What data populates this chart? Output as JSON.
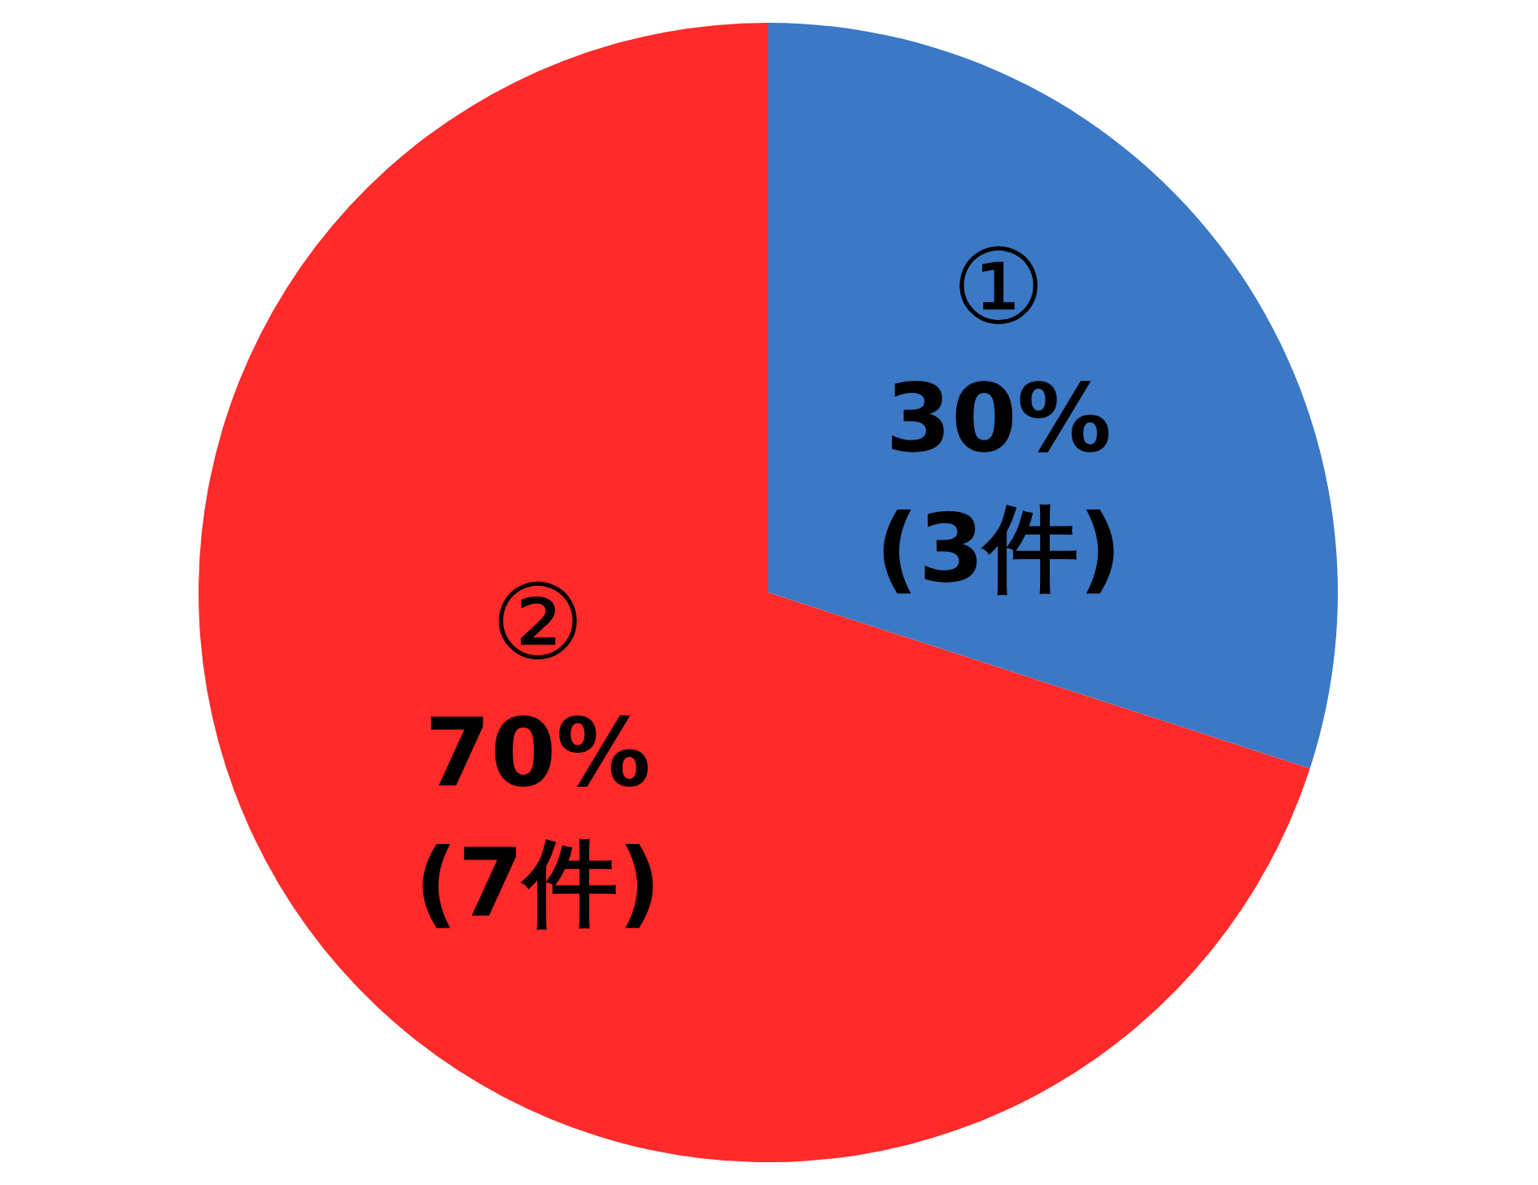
{
  "chart_data": {
    "type": "pie",
    "categories": [
      "①",
      "②"
    ],
    "values": [
      30,
      70
    ],
    "colors": [
      "#3b78c6",
      "#ff2a2a"
    ],
    "value_labels": [
      "30%",
      "70%"
    ],
    "annotations": [
      "(3件)",
      "(7件)"
    ]
  }
}
